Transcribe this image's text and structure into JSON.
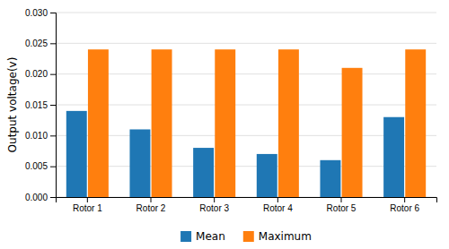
{
  "chart_data": {
    "type": "bar",
    "categories": [
      "Rotor 1",
      "Rotor 2",
      "Rotor 3",
      "Rotor 4",
      "Rotor 5",
      "Rotor 6"
    ],
    "series": [
      {
        "name": "Mean",
        "values": [
          0.014,
          0.011,
          0.008,
          0.007,
          0.006,
          0.013
        ]
      },
      {
        "name": "Maximum",
        "values": [
          0.024,
          0.024,
          0.024,
          0.024,
          0.021,
          0.024
        ]
      }
    ],
    "ylabel": "Output voltage(v)",
    "ylim": [
      0,
      0.03
    ],
    "yticks": [
      {
        "value": 0,
        "label": "0.000"
      },
      {
        "value": 0.005,
        "label": "0.005"
      },
      {
        "value": 0.01,
        "label": "0.010"
      },
      {
        "value": 0.015,
        "label": "0.015"
      },
      {
        "value": 0.02,
        "label": "0.020"
      },
      {
        "value": 0.025,
        "label": "0.025"
      },
      {
        "value": 0.03,
        "label": "0.030"
      }
    ],
    "grid": true,
    "legend": "bottom"
  }
}
